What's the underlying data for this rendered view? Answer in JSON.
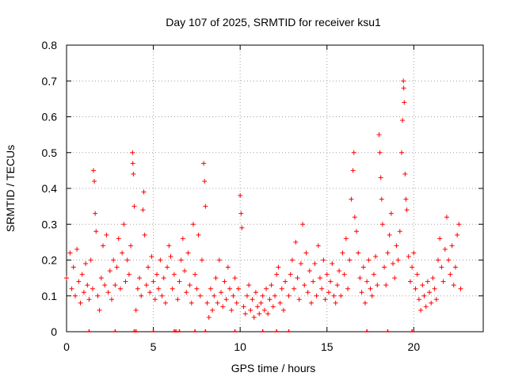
{
  "chart_data": {
    "type": "scatter",
    "title": "Day 107 of 2025, SRMTID for receiver ksu1",
    "xlabel": "GPS time / hours",
    "ylabel": "SRMTID / TECUs",
    "xlim": [
      0,
      24
    ],
    "ylim": [
      0,
      0.8
    ],
    "x_ticks": [
      0,
      5,
      10,
      15,
      20
    ],
    "x_tick_labels": [
      "0",
      "5",
      "10",
      "15",
      "20"
    ],
    "y_ticks": [
      0,
      0.1,
      0.2,
      0.3,
      0.4,
      0.5,
      0.6,
      0.7,
      0.8
    ],
    "y_tick_labels": [
      "0",
      "0.1",
      "0.2",
      "0.3",
      "0.4",
      "0.5",
      "0.6",
      "0.7",
      "0.8"
    ],
    "grid": true,
    "marker": "+",
    "color": "#ff0000",
    "series": [
      {
        "name": "SRMTID",
        "points": [
          [
            0.0,
            0.15
          ],
          [
            0.2,
            0.22
          ],
          [
            0.3,
            0.12
          ],
          [
            0.4,
            0.18
          ],
          [
            0.5,
            0.1
          ],
          [
            0.6,
            0.23
          ],
          [
            0.7,
            0.14
          ],
          [
            0.8,
            0.08
          ],
          [
            0.9,
            0.16
          ],
          [
            1.0,
            0.11
          ],
          [
            1.1,
            0.19
          ],
          [
            1.2,
            0.13
          ],
          [
            1.3,
            0.09
          ],
          [
            1.4,
            0.2
          ],
          [
            1.5,
            0.12
          ],
          [
            1.55,
            0.45
          ],
          [
            1.6,
            0.42
          ],
          [
            1.65,
            0.33
          ],
          [
            1.7,
            0.28
          ],
          [
            1.8,
            0.1
          ],
          [
            1.9,
            0.06
          ],
          [
            2.0,
            0.15
          ],
          [
            2.1,
            0.24
          ],
          [
            2.2,
            0.13
          ],
          [
            2.3,
            0.27
          ],
          [
            2.4,
            0.11
          ],
          [
            2.5,
            0.17
          ],
          [
            2.6,
            0.09
          ],
          [
            2.7,
            0.2
          ],
          [
            2.8,
            0.13
          ],
          [
            2.9,
            0.18
          ],
          [
            3.0,
            0.26
          ],
          [
            3.1,
            0.12
          ],
          [
            3.2,
            0.22
          ],
          [
            3.3,
            0.3
          ],
          [
            3.4,
            0.14
          ],
          [
            3.5,
            0.2
          ],
          [
            3.6,
            0.16
          ],
          [
            3.7,
            0.24
          ],
          [
            3.8,
            0.5
          ],
          [
            3.82,
            0.47
          ],
          [
            3.85,
            0.44
          ],
          [
            3.9,
            0.35
          ],
          [
            4.0,
            0.06
          ],
          [
            4.1,
            0.12
          ],
          [
            4.2,
            0.15
          ],
          [
            4.3,
            0.1
          ],
          [
            4.4,
            0.34
          ],
          [
            4.45,
            0.39
          ],
          [
            4.5,
            0.27
          ],
          [
            4.6,
            0.13
          ],
          [
            4.7,
            0.18
          ],
          [
            4.8,
            0.11
          ],
          [
            4.9,
            0.21
          ],
          [
            5.0,
            0.14
          ],
          [
            5.1,
            0.09
          ],
          [
            5.2,
            0.16
          ],
          [
            5.3,
            0.12
          ],
          [
            5.4,
            0.2
          ],
          [
            5.5,
            0.1
          ],
          [
            5.6,
            0.15
          ],
          [
            5.7,
            0.08
          ],
          [
            5.8,
            0.18
          ],
          [
            5.9,
            0.24
          ],
          [
            6.0,
            0.21
          ],
          [
            6.1,
            0.12
          ],
          [
            6.2,
            0.16
          ],
          [
            6.4,
            0.09
          ],
          [
            6.5,
            0.14
          ],
          [
            6.6,
            0.2
          ],
          [
            6.7,
            0.26
          ],
          [
            6.8,
            0.17
          ],
          [
            6.9,
            0.11
          ],
          [
            7.0,
            0.22
          ],
          [
            7.1,
            0.13
          ],
          [
            7.2,
            0.08
          ],
          [
            7.3,
            0.3
          ],
          [
            7.4,
            0.16
          ],
          [
            7.5,
            0.12
          ],
          [
            7.6,
            0.27
          ],
          [
            7.7,
            0.1
          ],
          [
            7.8,
            0.2
          ],
          [
            7.9,
            0.47
          ],
          [
            7.95,
            0.42
          ],
          [
            8.0,
            0.35
          ],
          [
            8.1,
            0.08
          ],
          [
            8.2,
            0.04
          ],
          [
            8.3,
            0.12
          ],
          [
            8.4,
            0.06
          ],
          [
            8.5,
            0.1
          ],
          [
            8.6,
            0.15
          ],
          [
            8.7,
            0.08
          ],
          [
            8.8,
            0.2
          ],
          [
            8.9,
            0.11
          ],
          [
            9.0,
            0.07
          ],
          [
            9.1,
            0.14
          ],
          [
            9.2,
            0.09
          ],
          [
            9.3,
            0.18
          ],
          [
            9.4,
            0.12
          ],
          [
            9.5,
            0.06
          ],
          [
            9.6,
            0.1
          ],
          [
            9.7,
            0.15
          ],
          [
            9.8,
            0.08
          ],
          [
            9.9,
            0.12
          ],
          [
            10.0,
            0.38
          ],
          [
            10.05,
            0.33
          ],
          [
            10.1,
            0.29
          ],
          [
            10.2,
            0.07
          ],
          [
            10.3,
            0.05
          ],
          [
            10.4,
            0.1
          ],
          [
            10.5,
            0.13
          ],
          [
            10.6,
            0.06
          ],
          [
            10.7,
            0.09
          ],
          [
            10.8,
            0.04
          ],
          [
            10.9,
            0.11
          ],
          [
            11.0,
            0.07
          ],
          [
            11.1,
            0.05
          ],
          [
            11.2,
            0.08
          ],
          [
            11.3,
            0.1
          ],
          [
            11.4,
            0.06
          ],
          [
            11.5,
            0.12
          ],
          [
            11.6,
            0.05
          ],
          [
            11.7,
            0.09
          ],
          [
            11.8,
            0.13
          ],
          [
            11.9,
            0.07
          ],
          [
            12.0,
            0.1
          ],
          [
            12.1,
            0.16
          ],
          [
            12.2,
            0.18
          ],
          [
            12.3,
            0.08
          ],
          [
            12.4,
            0.12
          ],
          [
            12.5,
            0.06
          ],
          [
            12.6,
            0.14
          ],
          [
            12.8,
            0.1
          ],
          [
            12.9,
            0.16
          ],
          [
            13.0,
            0.2
          ],
          [
            13.1,
            0.12
          ],
          [
            13.2,
            0.25
          ],
          [
            13.3,
            0.15
          ],
          [
            13.4,
            0.09
          ],
          [
            13.5,
            0.19
          ],
          [
            13.6,
            0.3
          ],
          [
            13.7,
            0.13
          ],
          [
            13.8,
            0.22
          ],
          [
            13.9,
            0.11
          ],
          [
            14.0,
            0.17
          ],
          [
            14.1,
            0.08
          ],
          [
            14.2,
            0.14
          ],
          [
            14.3,
            0.19
          ],
          [
            14.4,
            0.1
          ],
          [
            14.5,
            0.24
          ],
          [
            14.6,
            0.15
          ],
          [
            14.7,
            0.12
          ],
          [
            14.8,
            0.2
          ],
          [
            14.9,
            0.09
          ],
          [
            15.0,
            0.16
          ],
          [
            15.1,
            0.11
          ],
          [
            15.2,
            0.14
          ],
          [
            15.3,
            0.19
          ],
          [
            15.4,
            0.1
          ],
          [
            15.5,
            0.08
          ],
          [
            15.6,
            0.13
          ],
          [
            15.7,
            0.17
          ],
          [
            15.8,
            0.1
          ],
          [
            15.9,
            0.22
          ],
          [
            16.0,
            0.16
          ],
          [
            16.1,
            0.26
          ],
          [
            16.2,
            0.12
          ],
          [
            16.3,
            0.2
          ],
          [
            16.4,
            0.37
          ],
          [
            16.5,
            0.45
          ],
          [
            16.55,
            0.5
          ],
          [
            16.6,
            0.32
          ],
          [
            16.7,
            0.28
          ],
          [
            16.8,
            0.22
          ],
          [
            16.9,
            0.15
          ],
          [
            17.0,
            0.11
          ],
          [
            17.1,
            0.18
          ],
          [
            17.2,
            0.08
          ],
          [
            17.3,
            0.14
          ],
          [
            17.4,
            0.2
          ],
          [
            17.5,
            0.12
          ],
          [
            17.6,
            0.1
          ],
          [
            17.7,
            0.16
          ],
          [
            17.8,
            0.21
          ],
          [
            17.9,
            0.13
          ],
          [
            18.0,
            0.55
          ],
          [
            18.05,
            0.5
          ],
          [
            18.1,
            0.43
          ],
          [
            18.15,
            0.37
          ],
          [
            18.2,
            0.3
          ],
          [
            18.3,
            0.18
          ],
          [
            18.4,
            0.13
          ],
          [
            18.5,
            0.22
          ],
          [
            18.6,
            0.27
          ],
          [
            18.7,
            0.33
          ],
          [
            18.8,
            0.19
          ],
          [
            18.9,
            0.15
          ],
          [
            19.0,
            0.24
          ],
          [
            19.1,
            0.2
          ],
          [
            19.2,
            0.28
          ],
          [
            19.3,
            0.5
          ],
          [
            19.35,
            0.59
          ],
          [
            19.4,
            0.7
          ],
          [
            19.42,
            0.68
          ],
          [
            19.45,
            0.64
          ],
          [
            19.5,
            0.44
          ],
          [
            19.55,
            0.37
          ],
          [
            19.6,
            0.34
          ],
          [
            19.7,
            0.21
          ],
          [
            19.8,
            0.14
          ],
          [
            19.9,
            0.18
          ],
          [
            20.0,
            0.22
          ],
          [
            20.1,
            0.12
          ],
          [
            20.2,
            0.16
          ],
          [
            20.3,
            0.09
          ],
          [
            20.4,
            0.06
          ],
          [
            20.5,
            0.13
          ],
          [
            20.6,
            0.1
          ],
          [
            20.7,
            0.07
          ],
          [
            20.8,
            0.14
          ],
          [
            20.9,
            0.11
          ],
          [
            21.0,
            0.08
          ],
          [
            21.1,
            0.15
          ],
          [
            21.2,
            0.12
          ],
          [
            21.3,
            0.09
          ],
          [
            21.4,
            0.2
          ],
          [
            21.5,
            0.26
          ],
          [
            21.6,
            0.18
          ],
          [
            21.7,
            0.14
          ],
          [
            21.8,
            0.23
          ],
          [
            21.9,
            0.32
          ],
          [
            22.0,
            0.2
          ],
          [
            22.1,
            0.16
          ],
          [
            22.2,
            0.24
          ],
          [
            22.3,
            0.13
          ],
          [
            22.4,
            0.18
          ],
          [
            22.5,
            0.27
          ],
          [
            22.6,
            0.3
          ],
          [
            22.7,
            0.12
          ]
        ],
        "baseline_marks_x": [
          1.3,
          2.8,
          3.9,
          4.0,
          5.0,
          6.2,
          6.3,
          6.5,
          7.4,
          8.0,
          9.7,
          11.3,
          12.1,
          12.8,
          17.3,
          18.5,
          19.9
        ]
      }
    ]
  }
}
